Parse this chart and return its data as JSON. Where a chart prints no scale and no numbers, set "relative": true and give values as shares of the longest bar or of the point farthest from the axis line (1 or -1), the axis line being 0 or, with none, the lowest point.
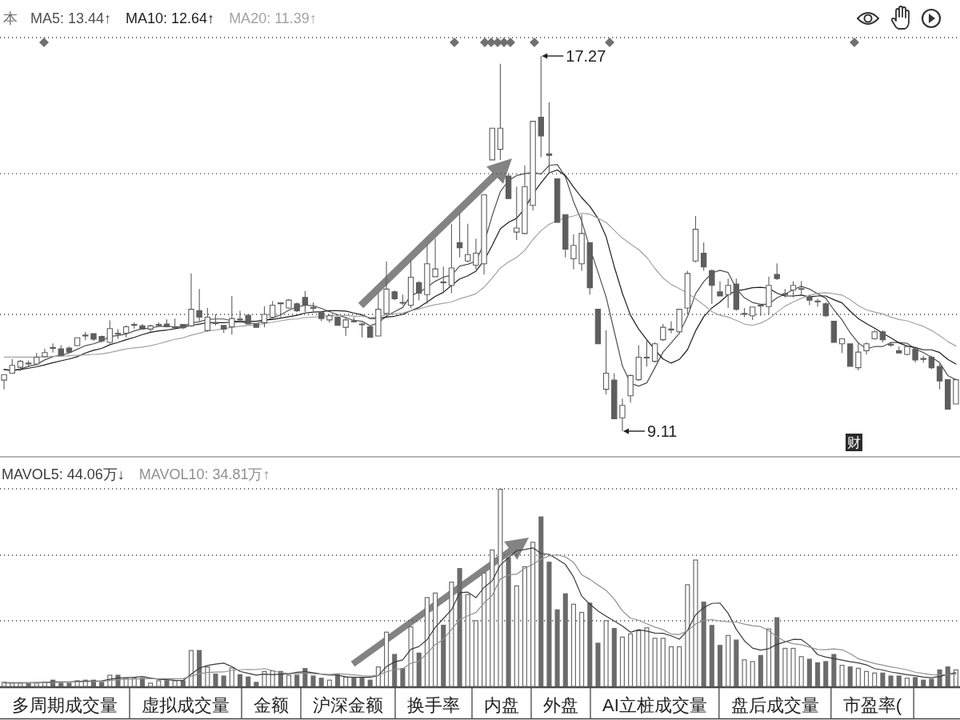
{
  "chart_data": [
    {
      "type": "candlestick",
      "title": "本",
      "legend": "top left",
      "grid": "y",
      "color": "#5e5e5e",
      "ylim": [
        8.57,
        17.67
      ],
      "yticks": [
        {
          "value": 11.65,
          "label": null
        },
        {
          "value": 14.71,
          "label": null
        },
        {
          "value": 17.67,
          "label": null
        }
      ],
      "categories": [
        null,
        null,
        null,
        null,
        null,
        null,
        null,
        null,
        null,
        null,
        null,
        null,
        null,
        null,
        null,
        null,
        null,
        null,
        null,
        null,
        null,
        null,
        null,
        null,
        null,
        null,
        null,
        null,
        null,
        null,
        null,
        null,
        null,
        null,
        null,
        null,
        null,
        null,
        null,
        null,
        null,
        null,
        null,
        null,
        null,
        null,
        null,
        null,
        null,
        null,
        null,
        null,
        null,
        null,
        null,
        null,
        null,
        null,
        null,
        null,
        null,
        null,
        null,
        null,
        null,
        null,
        null,
        null,
        null,
        null,
        null,
        null,
        null,
        null,
        null,
        null,
        null,
        null,
        null,
        null,
        null,
        null,
        null,
        null,
        null,
        null,
        null,
        null,
        null,
        null,
        null,
        null,
        null,
        null,
        null,
        null,
        null,
        null,
        null,
        null,
        null,
        null,
        null,
        null,
        null,
        null,
        null,
        null,
        null,
        null,
        null,
        null,
        null,
        null,
        null,
        null,
        null,
        null
      ],
      "ohlc": [
        [
          10.22,
          10.34,
          10.02,
          10.34
        ],
        [
          10.37,
          10.68,
          10.37,
          10.54
        ],
        [
          10.5,
          10.66,
          10.42,
          10.63
        ],
        [
          10.59,
          10.65,
          10.52,
          10.58
        ],
        [
          10.57,
          10.81,
          10.54,
          10.72
        ],
        [
          10.73,
          10.9,
          10.72,
          10.82
        ],
        [
          10.93,
          11.02,
          10.82,
          10.91
        ],
        [
          10.9,
          10.98,
          10.75,
          10.76
        ],
        [
          10.92,
          10.95,
          10.81,
          10.83
        ],
        [
          10.97,
          11.15,
          10.96,
          11.14
        ],
        [
          11.18,
          11.27,
          11.09,
          11.2
        ],
        [
          11.23,
          11.24,
          11.07,
          11.11
        ],
        [
          11.17,
          11.19,
          11.04,
          11.07
        ],
        [
          11.04,
          11.52,
          11.01,
          11.34
        ],
        [
          11.24,
          11.33,
          11.12,
          11.22
        ],
        [
          11.24,
          11.41,
          11.15,
          11.38
        ],
        [
          11.42,
          11.48,
          11.34,
          11.43
        ],
        [
          11.4,
          11.44,
          11.33,
          11.33
        ],
        [
          11.33,
          11.43,
          11.27,
          11.4
        ],
        [
          11.41,
          11.48,
          11.38,
          11.43
        ],
        [
          11.44,
          11.54,
          11.38,
          11.38
        ],
        [
          11.37,
          11.56,
          11.34,
          11.38
        ],
        [
          11.43,
          11.44,
          11.33,
          11.36
        ],
        [
          11.4,
          12.54,
          11.38,
          11.76
        ],
        [
          11.73,
          12.2,
          11.5,
          11.59
        ],
        [
          11.3,
          11.79,
          11.27,
          11.59
        ],
        [
          11.47,
          11.65,
          11.41,
          11.46
        ],
        [
          11.41,
          11.41,
          11.25,
          11.33
        ],
        [
          11.38,
          12.05,
          11.21,
          11.56
        ],
        [
          11.55,
          11.73,
          11.47,
          11.53
        ],
        [
          11.63,
          11.66,
          11.43,
          11.44
        ],
        [
          11.44,
          11.46,
          11.36,
          11.37
        ],
        [
          11.47,
          11.83,
          11.37,
          11.65
        ],
        [
          11.59,
          11.94,
          11.56,
          11.85
        ],
        [
          11.9,
          11.91,
          11.59,
          11.88
        ],
        [
          11.79,
          11.98,
          11.77,
          11.96
        ],
        [
          11.88,
          11.91,
          11.7,
          11.73
        ],
        [
          12.02,
          12.16,
          11.7,
          11.85
        ],
        [
          11.8,
          11.91,
          11.72,
          11.78
        ],
        [
          11.69,
          11.72,
          11.5,
          11.56
        ],
        [
          11.53,
          11.65,
          11.47,
          11.62
        ],
        [
          11.59,
          11.6,
          11.4,
          11.41
        ],
        [
          11.37,
          11.59,
          11.18,
          11.53
        ],
        [
          11.51,
          11.59,
          11.47,
          11.49
        ],
        [
          11.44,
          11.47,
          11.15,
          11.43
        ],
        [
          11.38,
          11.39,
          11.15,
          11.15
        ],
        [
          11.18,
          12.11,
          11.18,
          11.76
        ],
        [
          11.67,
          12.8,
          11.65,
          12.2
        ],
        [
          12.14,
          12.17,
          11.96,
          11.99
        ],
        [
          11.91,
          12.08,
          11.85,
          11.9
        ],
        [
          11.85,
          12.83,
          11.79,
          12.46
        ],
        [
          12.34,
          12.37,
          11.96,
          12.11
        ],
        [
          12.08,
          13.18,
          11.88,
          12.75
        ],
        [
          12.47,
          13.3,
          12.46,
          12.64
        ],
        [
          12.36,
          12.69,
          12.11,
          12.34
        ],
        [
          12.28,
          13.62,
          12.11,
          12.66
        ],
        [
          13.21,
          13.85,
          12.89,
          13.1
        ],
        [
          12.81,
          13.62,
          12.78,
          12.95
        ],
        [
          12.72,
          13.3,
          12.63,
          12.98
        ],
        [
          12.75,
          14.25,
          12.52,
          14.25
        ],
        [
          15.01,
          15.7,
          15.01,
          15.7
        ],
        [
          15.24,
          17.1,
          15.01,
          15.7
        ],
        [
          14.66,
          14.72,
          14.17,
          14.17
        ],
        [
          13.44,
          14.43,
          13.27,
          13.53
        ],
        [
          13.41,
          14.89,
          13.39,
          14.43
        ],
        [
          14.02,
          15.85,
          13.91,
          15.85
        ],
        [
          15.94,
          17.27,
          15.07,
          15.53
        ],
        [
          15.14,
          16.26,
          14.72,
          15.11
        ],
        [
          14.6,
          14.6,
          13.65,
          13.65
        ],
        [
          13.82,
          13.82,
          12.89,
          13.07
        ],
        [
          12.86,
          13.39,
          12.63,
          13.15
        ],
        [
          12.75,
          13.82,
          12.6,
          13.41
        ],
        [
          13.21,
          13.21,
          12.08,
          12.23
        ],
        [
          11.76,
          11.76,
          11.01,
          11.01
        ],
        [
          10.02,
          11.3,
          9.91,
          10.37
        ],
        [
          10.22,
          10.37,
          9.38,
          9.38
        ],
        [
          9.4,
          9.82,
          9.11,
          9.67
        ],
        [
          9.88,
          10.34,
          9.73,
          10.32
        ],
        [
          10.23,
          10.98,
          10.2,
          10.72
        ],
        [
          10.72,
          11.1,
          10.52,
          10.72
        ],
        [
          10.63,
          11.04,
          10.6,
          11.01
        ],
        [
          11.1,
          11.44,
          11.07,
          11.37
        ],
        [
          11.33,
          11.5,
          11.24,
          11.33
        ],
        [
          11.27,
          11.77,
          11.24,
          11.76
        ],
        [
          11.79,
          12.6,
          11.65,
          12.54
        ],
        [
          12.81,
          13.79,
          12.78,
          13.5
        ],
        [
          12.98,
          13.21,
          12.6,
          12.68
        ],
        [
          12.6,
          12.63,
          11.88,
          12.28
        ],
        [
          12.14,
          12.37,
          12.05,
          12.05
        ],
        [
          12.08,
          12.43,
          11.79,
          12.28
        ],
        [
          12.31,
          12.43,
          11.73,
          11.76
        ],
        [
          11.67,
          11.79,
          11.59,
          11.67
        ],
        [
          11.62,
          11.82,
          11.53,
          11.81
        ],
        [
          11.85,
          11.85,
          11.62,
          11.84
        ],
        [
          11.82,
          12.47,
          11.65,
          12.28
        ],
        [
          12.52,
          12.76,
          12.4,
          12.43
        ],
        [
          12.1,
          12.2,
          12.02,
          12.1
        ],
        [
          12.18,
          12.37,
          12.02,
          12.28
        ],
        [
          12.21,
          12.37,
          12.08,
          12.21
        ],
        [
          12.02,
          12.08,
          11.85,
          11.96
        ],
        [
          11.94,
          11.99,
          11.82,
          11.93
        ],
        [
          11.88,
          11.91,
          11.59,
          11.62
        ],
        [
          11.5,
          11.5,
          11.04,
          11.04
        ],
        [
          11.01,
          11.12,
          10.81,
          11.12
        ],
        [
          11.01,
          11.01,
          10.52,
          10.52
        ],
        [
          10.49,
          11.04,
          10.43,
          10.83
        ],
        [
          10.86,
          11.04,
          10.78,
          11.01
        ],
        [
          11.12,
          11.3,
          11.1,
          11.27
        ],
        [
          11.27,
          11.3,
          11.04,
          11.1
        ],
        [
          11.0,
          11.04,
          10.95,
          10.99
        ],
        [
          10.86,
          10.95,
          10.81,
          10.81
        ],
        [
          10.78,
          10.98,
          10.76,
          10.95
        ],
        [
          10.89,
          10.92,
          10.6,
          10.66
        ],
        [
          10.69,
          10.75,
          10.6,
          10.68
        ],
        [
          10.72,
          10.75,
          10.46,
          10.49
        ],
        [
          10.52,
          10.57,
          10.02,
          10.2
        ],
        [
          10.23,
          10.23,
          9.59,
          9.59
        ],
        [
          9.7,
          10.25,
          9.7,
          10.23
        ]
      ],
      "series": [
        {
          "name": "MA5: 13.44↑",
          "type": "line",
          "color": "#505050",
          "values": [
            10.45,
            10.43,
            10.46,
            10.52,
            10.56,
            10.66,
            10.73,
            10.76,
            10.81,
            10.89,
            10.97,
            11.01,
            11.07,
            11.17,
            11.19,
            11.22,
            11.29,
            11.34,
            11.35,
            11.39,
            11.39,
            11.38,
            11.39,
            11.46,
            11.49,
            11.54,
            11.55,
            11.55,
            11.51,
            11.49,
            11.46,
            11.45,
            11.51,
            11.57,
            11.64,
            11.74,
            11.81,
            11.85,
            11.84,
            11.78,
            11.71,
            11.64,
            11.58,
            11.52,
            11.5,
            11.4,
            11.47,
            11.61,
            11.71,
            11.8,
            12.06,
            12.13,
            12.24,
            12.37,
            12.46,
            12.5,
            12.7,
            12.74,
            12.81,
            13.19,
            13.8,
            14.32,
            14.56,
            14.67,
            14.71,
            14.74,
            14.7,
            14.89,
            14.91,
            14.64,
            14.1,
            13.68,
            13.1,
            12.57,
            12.03,
            11.28,
            10.53,
            10.15,
            10.09,
            10.16,
            10.49,
            10.83,
            11.03,
            11.24,
            11.6,
            12.1,
            12.36,
            12.55,
            12.61,
            12.56,
            12.21,
            12.01,
            11.91,
            11.87,
            11.87,
            12.01,
            12.09,
            12.19,
            12.26,
            12.2,
            12.1,
            12.0,
            11.75,
            11.53,
            11.25,
            11.03,
            10.9,
            10.95,
            10.95,
            11.04,
            11.04,
            11.02,
            10.9,
            10.82,
            10.72,
            10.6,
            10.32,
            10.23
          ]
        },
        {
          "name": "MA10: 12.64↑",
          "type": "line",
          "color": "#1e1e1e",
          "values": [
            10.45,
            10.43,
            10.45,
            10.48,
            10.51,
            10.55,
            10.6,
            10.64,
            10.68,
            10.73,
            10.81,
            10.87,
            10.91,
            10.99,
            11.04,
            11.1,
            11.15,
            11.21,
            11.26,
            11.29,
            11.31,
            11.34,
            11.37,
            11.41,
            11.44,
            11.47,
            11.47,
            11.47,
            11.48,
            11.49,
            11.5,
            11.5,
            11.53,
            11.54,
            11.57,
            11.6,
            11.63,
            11.68,
            11.7,
            11.71,
            11.73,
            11.73,
            11.72,
            11.68,
            11.64,
            11.56,
            11.56,
            11.59,
            11.61,
            11.65,
            11.73,
            11.8,
            11.92,
            12.04,
            12.13,
            12.28,
            12.42,
            12.49,
            12.59,
            12.82,
            13.15,
            13.51,
            13.65,
            13.74,
            13.95,
            14.27,
            14.51,
            14.73,
            14.79,
            14.67,
            14.42,
            14.19,
            14.0,
            13.74,
            13.34,
            12.69,
            12.11,
            11.63,
            11.33,
            11.1,
            10.88,
            10.68,
            10.59,
            10.67,
            10.88,
            11.29,
            11.6,
            11.79,
            11.92,
            12.08,
            12.16,
            12.19,
            12.23,
            12.24,
            12.22,
            12.11,
            12.05,
            12.05,
            12.07,
            12.03,
            12.05,
            12.05,
            11.97,
            11.9,
            11.72,
            11.56,
            11.45,
            11.35,
            11.24,
            11.14,
            11.03,
            10.96,
            10.93,
            10.88,
            10.88,
            10.82,
            10.67,
            10.57
          ]
        },
        {
          "name": "MA20: 11.39↑",
          "type": "line",
          "color": "#a3a3a3",
          "values": [
            10.72,
            10.72,
            10.72,
            10.72,
            10.72,
            10.73,
            10.74,
            10.74,
            10.75,
            10.76,
            10.77,
            10.78,
            10.79,
            10.82,
            10.86,
            10.9,
            10.92,
            10.94,
            10.97,
            11.01,
            11.06,
            11.11,
            11.14,
            11.2,
            11.24,
            11.29,
            11.31,
            11.34,
            11.37,
            11.39,
            11.41,
            11.42,
            11.45,
            11.48,
            11.51,
            11.54,
            11.55,
            11.58,
            11.59,
            11.6,
            11.62,
            11.62,
            11.63,
            11.61,
            11.61,
            11.58,
            11.6,
            11.64,
            11.66,
            11.68,
            11.73,
            11.77,
            11.82,
            11.86,
            11.89,
            11.92,
            11.99,
            12.04,
            12.1,
            12.24,
            12.44,
            12.66,
            12.79,
            12.89,
            13.04,
            13.28,
            13.47,
            13.61,
            13.69,
            13.75,
            13.79,
            13.85,
            13.83,
            13.74,
            13.65,
            13.48,
            13.31,
            13.18,
            13.06,
            12.89,
            12.65,
            12.44,
            12.3,
            12.21,
            12.11,
            11.99,
            11.86,
            11.71,
            11.63,
            11.59,
            11.52,
            11.44,
            11.41,
            11.46,
            11.55,
            11.7,
            11.83,
            11.92,
            12.0,
            12.06,
            12.11,
            12.12,
            12.1,
            12.07,
            11.97,
            11.84,
            11.75,
            11.7,
            11.66,
            11.59,
            11.54,
            11.51,
            11.45,
            11.39,
            11.3,
            11.19,
            11.06,
            10.96
          ]
        }
      ],
      "annotations": [
        "17.27",
        "9.11",
        "财"
      ]
    },
    {
      "type": "bar",
      "relative": true,
      "legend": "top left",
      "ref_lines": [
        {
          "axis": "y",
          "value": 0.332,
          "line_style": "dotted",
          "color": "#4d4d4d"
        },
        {
          "axis": "y",
          "value": 0.664,
          "line_style": "dotted",
          "color": "#4d4d4d"
        },
        {
          "axis": "y",
          "value": 1,
          "line_style": "dotted",
          "color": "#4d4d4d"
        }
      ],
      "categories": [
        null,
        null,
        null,
        null,
        null,
        null,
        null,
        null,
        null,
        null,
        null,
        null,
        null,
        null,
        null,
        null,
        null,
        null,
        null,
        null,
        null,
        null,
        null,
        null,
        null,
        null,
        null,
        null,
        null,
        null,
        null,
        null,
        null,
        null,
        null,
        null,
        null,
        null,
        null,
        null,
        null,
        null,
        null,
        null,
        null,
        null,
        null,
        null,
        null,
        null,
        null,
        null,
        null,
        null,
        null,
        null,
        null,
        null,
        null,
        null,
        null,
        null,
        null,
        null,
        null,
        null,
        null,
        null,
        null,
        null,
        null,
        null,
        null,
        null,
        null,
        null,
        null,
        null,
        null,
        null,
        null,
        null,
        null,
        null,
        null,
        null,
        null,
        null,
        null,
        null,
        null,
        null,
        null,
        null,
        null,
        null,
        null,
        null,
        null,
        null,
        null,
        null,
        null,
        null,
        null,
        null,
        null,
        null,
        null,
        null,
        null,
        null,
        null,
        null,
        null,
        null,
        null,
        null
      ],
      "series": [
        {
          "type": "bar",
          "color": "#6b6b6b",
          "values": [
            0.023,
            0.019,
            0.019,
            0.019,
            0.019,
            0.023,
            0.034,
            0.019,
            0.019,
            0.031,
            0.034,
            0.034,
            0.023,
            0.059,
            0.059,
            0.044,
            0.044,
            0.044,
            0.019,
            0.031,
            0.031,
            0.031,
            0.031,
            0.184,
            0.184,
            0.101,
            0.065,
            0.055,
            0.096,
            0.062,
            0.05,
            0.023,
            0.078,
            0.081,
            0.078,
            0.059,
            0.059,
            0.093,
            0.055,
            0.044,
            0.034,
            0.059,
            0.05,
            0.044,
            0.044,
            0.034,
            0.101,
            0.277,
            0.164,
            0.093,
            0.304,
            0.171,
            0.452,
            0.475,
            0.312,
            0.53,
            0.599,
            0.467,
            0.335,
            0.576,
            0.693,
            1,
            0.654,
            0.511,
            0.608,
            0.732,
            0.86,
            0.631,
            0.39,
            0.471,
            0.418,
            0.377,
            0.424,
            0.221,
            0.335,
            0.296,
            0.252,
            0.268,
            0.284,
            0.299,
            0.246,
            0.246,
            0.203,
            0.203,
            0.517,
            0.642,
            0.429,
            0.311,
            0.21,
            0.26,
            0.237,
            0.137,
            0.128,
            0.159,
            0.293,
            0.35,
            0.195,
            0.195,
            0.153,
            0.14,
            0.122,
            0.128,
            0.164,
            0.109,
            0.101,
            0.094,
            0.078,
            0.07,
            0.07,
            0.055,
            0.055,
            0.044,
            0.047,
            0.034,
            0.039,
            0.086,
            0.101,
            0.086
          ]
        },
        {
          "name": "MAVOL5: 44.06万↓",
          "type": "line",
          "color": "#3c3c3c",
          "values": [
            0.019,
            0.019,
            0.019,
            0.019,
            0.02,
            0.02,
            0.023,
            0.023,
            0.023,
            0.025,
            0.027,
            0.027,
            0.028,
            0.036,
            0.042,
            0.044,
            0.046,
            0.05,
            0.042,
            0.036,
            0.034,
            0.031,
            0.029,
            0.062,
            0.092,
            0.106,
            0.113,
            0.118,
            0.1,
            0.076,
            0.066,
            0.057,
            0.062,
            0.059,
            0.062,
            0.064,
            0.071,
            0.074,
            0.069,
            0.062,
            0.057,
            0.057,
            0.048,
            0.046,
            0.046,
            0.046,
            0.055,
            0.1,
            0.124,
            0.134,
            0.188,
            0.202,
            0.237,
            0.299,
            0.343,
            0.388,
            0.474,
            0.477,
            0.449,
            0.501,
            0.534,
            0.614,
            0.652,
            0.687,
            0.693,
            0.701,
            0.673,
            0.668,
            0.644,
            0.617,
            0.554,
            0.457,
            0.416,
            0.382,
            0.355,
            0.331,
            0.306,
            0.274,
            0.287,
            0.28,
            0.27,
            0.269,
            0.256,
            0.239,
            0.283,
            0.362,
            0.399,
            0.42,
            0.422,
            0.37,
            0.289,
            0.231,
            0.194,
            0.184,
            0.191,
            0.213,
            0.225,
            0.238,
            0.237,
            0.207,
            0.161,
            0.148,
            0.141,
            0.133,
            0.125,
            0.119,
            0.109,
            0.09,
            0.083,
            0.073,
            0.066,
            0.059,
            0.054,
            0.047,
            0.044,
            0.05,
            0.061,
            0.069
          ]
        },
        {
          "name": "MAVOL10: 34.81万↑",
          "type": "line",
          "color": "#909090",
          "values": [
            0.017,
            0.017,
            0.017,
            0.018,
            0.018,
            0.019,
            0.02,
            0.021,
            0.022,
            0.023,
            0.024,
            0.025,
            0.026,
            0.03,
            0.034,
            0.036,
            0.037,
            0.039,
            0.039,
            0.039,
            0.039,
            0.039,
            0.039,
            0.052,
            0.064,
            0.07,
            0.072,
            0.073,
            0.081,
            0.084,
            0.086,
            0.085,
            0.09,
            0.08,
            0.069,
            0.065,
            0.064,
            0.068,
            0.064,
            0.062,
            0.06,
            0.064,
            0.061,
            0.058,
            0.054,
            0.052,
            0.056,
            0.074,
            0.085,
            0.09,
            0.117,
            0.128,
            0.168,
            0.212,
            0.238,
            0.288,
            0.338,
            0.357,
            0.374,
            0.422,
            0.461,
            0.544,
            0.564,
            0.568,
            0.597,
            0.618,
            0.644,
            0.66,
            0.666,
            0.655,
            0.628,
            0.565,
            0.542,
            0.513,
            0.486,
            0.442,
            0.382,
            0.345,
            0.335,
            0.317,
            0.3,
            0.287,
            0.265,
            0.263,
            0.281,
            0.316,
            0.334,
            0.338,
            0.331,
            0.327,
            0.326,
            0.315,
            0.307,
            0.303,
            0.281,
            0.251,
            0.228,
            0.216,
            0.211,
            0.199,
            0.187,
            0.186,
            0.19,
            0.185,
            0.166,
            0.14,
            0.128,
            0.116,
            0.108,
            0.099,
            0.092,
            0.084,
            0.072,
            0.065,
            0.059,
            0.058,
            0.06,
            0.062
          ]
        }
      ],
      "annotations": [
        "多周期成交量",
        "虚拟成交量",
        "金额",
        "沪深金额",
        "换手率",
        "内盘",
        "外盘",
        "AI立桩成交量",
        "盘后成交量",
        "市盈率("
      ]
    }
  ]
}
